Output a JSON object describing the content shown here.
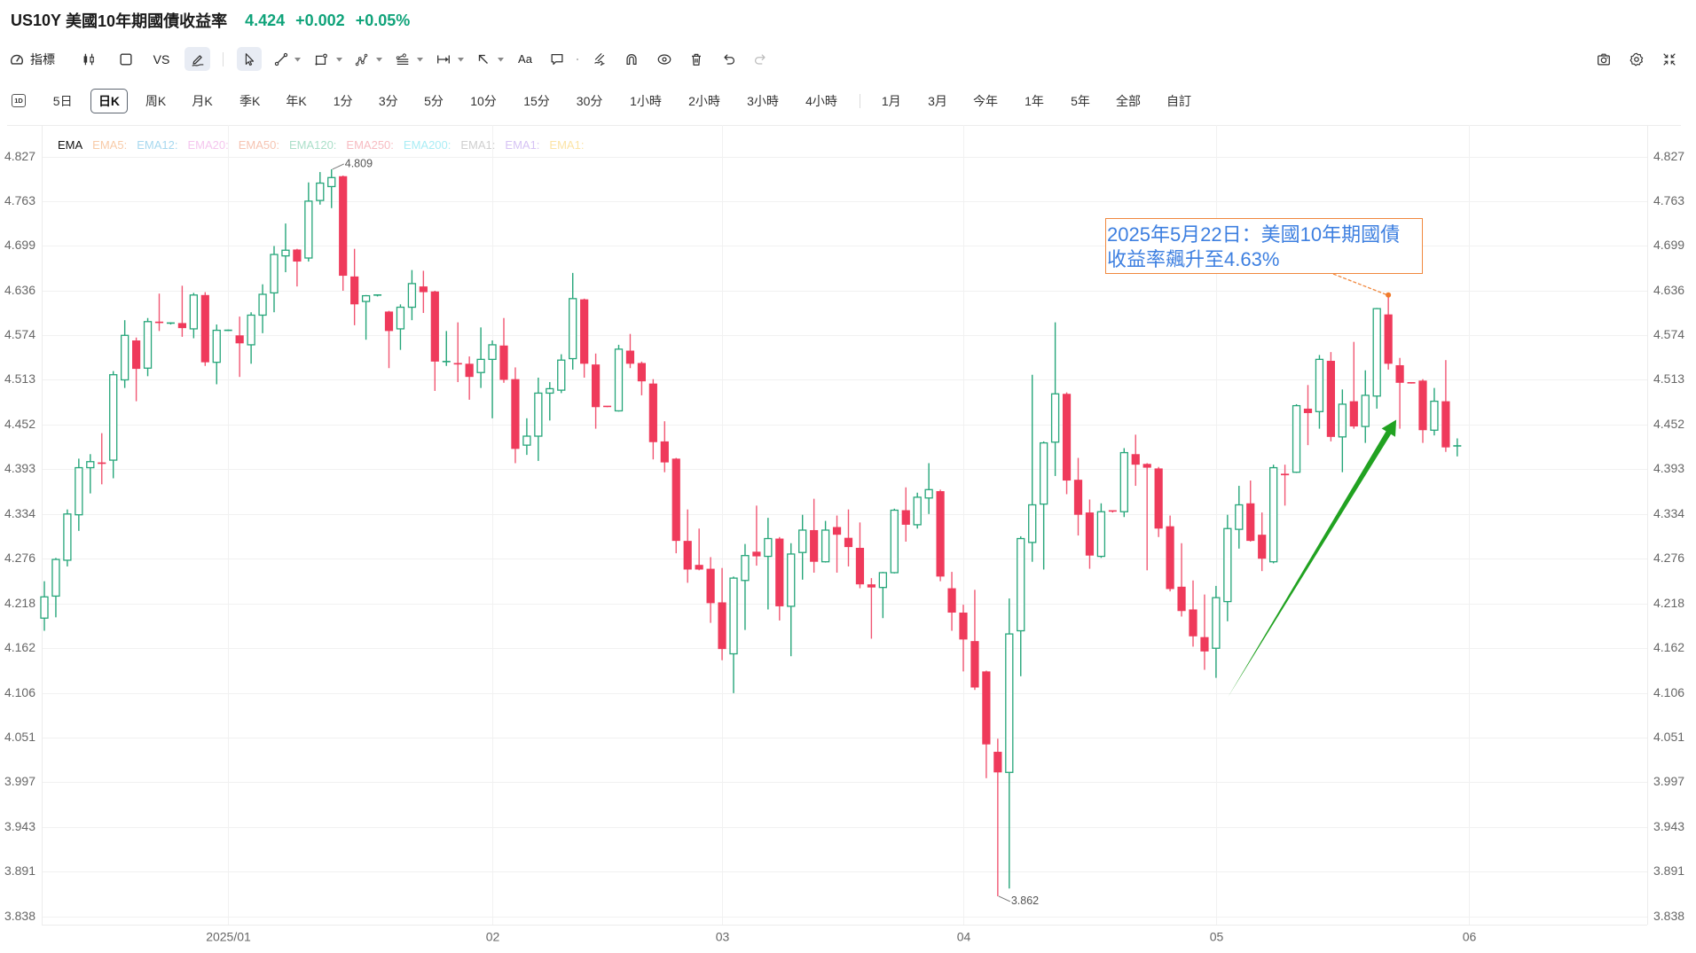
{
  "header": {
    "symbol": "US10Y",
    "name": "美國10年期國債收益率",
    "price": "4.424",
    "change": "+0.002",
    "change_pct": "+0.05%"
  },
  "toolbar": {
    "indicators": {
      "label": "指標",
      "icon": "gauge-icon"
    },
    "chart_type": {
      "icon": "candlestick-icon"
    },
    "layout": {
      "icon": "square-icon"
    },
    "compare": {
      "label": "VS"
    },
    "drawing_toggle": {
      "icon": "pen-icon",
      "active": true
    },
    "cursor": {
      "icon": "cursor-arrow-icon",
      "active": true
    },
    "tools": [
      {
        "icon": "trend-line-icon",
        "has_dropdown": true
      },
      {
        "icon": "rectangle-shape-icon",
        "has_dropdown": true
      },
      {
        "icon": "pattern-icon",
        "has_dropdown": true
      },
      {
        "icon": "fibonacci-icon",
        "has_dropdown": true
      },
      {
        "icon": "measure-range-icon",
        "has_dropdown": true
      },
      {
        "icon": "arrow-tool-icon",
        "has_dropdown": true
      }
    ],
    "text_tool": {
      "label": "Aa"
    },
    "actions": [
      "comment-icon",
      "brush-icon",
      "magnet-icon",
      "eye-icon",
      "trash-icon",
      "undo-icon",
      "redo-icon"
    ],
    "right": [
      "camera-icon",
      "settings-icon",
      "exit-fullscreen-icon"
    ]
  },
  "periods": {
    "badge": "1D",
    "items": [
      {
        "label": "5日"
      },
      {
        "label": "日K",
        "active": true
      },
      {
        "label": "周K"
      },
      {
        "label": "月K"
      },
      {
        "label": "季K"
      },
      {
        "label": "年K"
      },
      {
        "label": "1分"
      },
      {
        "label": "3分"
      },
      {
        "label": "5分"
      },
      {
        "label": "10分"
      },
      {
        "label": "15分"
      },
      {
        "label": "30分"
      },
      {
        "label": "1小時"
      },
      {
        "label": "2小時"
      },
      {
        "label": "3小時"
      },
      {
        "label": "4小時"
      }
    ],
    "ranges": [
      {
        "label": "1月"
      },
      {
        "label": "3月"
      },
      {
        "label": "今年"
      },
      {
        "label": "1年"
      },
      {
        "label": "5年"
      },
      {
        "label": "全部"
      },
      {
        "label": "自訂"
      }
    ]
  },
  "legend": {
    "title": "EMA",
    "items": [
      {
        "label": "EMA5:",
        "color": "#f8cba8"
      },
      {
        "label": "EMA12:",
        "color": "#a7d8ef"
      },
      {
        "label": "EMA20:",
        "color": "#f5c6ee"
      },
      {
        "label": "EMA50:",
        "color": "#f6c4b2"
      },
      {
        "label": "EMA120:",
        "color": "#abdfc9"
      },
      {
        "label": "EMA250:",
        "color": "#f7bcc2"
      },
      {
        "label": "EMA200:",
        "color": "#aaedf5"
      },
      {
        "label": "EMA1:",
        "color": "#cfcfcf"
      },
      {
        "label": "EMA1:",
        "color": "#d6c3f4"
      },
      {
        "label": "EMA1:",
        "color": "#fce4a6"
      }
    ]
  },
  "annotation": {
    "lines": [
      "2025年5月22日：美國10年期國債",
      "收益率飆升至4.63%"
    ],
    "border_color": "#f0883e",
    "text_color": "#3d7fe0"
  },
  "colors": {
    "up": "#26a67a",
    "down": "#ef3a5b",
    "quote": "#10a37a",
    "arrow": "#21a221",
    "grid": "#f1f1f1",
    "axis_text": "#666666"
  },
  "chart_data": {
    "type": "candlestick",
    "title": "US10Y 美國10年期國債收益率",
    "interval": "日K",
    "y_scale": "log",
    "ylim": [
      3.838,
      4.827
    ],
    "y_ticks": [
      4.827,
      4.763,
      4.699,
      4.636,
      4.574,
      4.513,
      4.452,
      4.393,
      4.334,
      4.276,
      4.218,
      4.162,
      4.106,
      4.051,
      3.997,
      3.943,
      3.891,
      3.838
    ],
    "x_ticks": [
      {
        "label": "2025/01",
        "index": 16
      },
      {
        "label": "02",
        "index": 39
      },
      {
        "label": "03",
        "index": 59
      },
      {
        "label": "04",
        "index": 80
      },
      {
        "label": "05",
        "index": 102
      },
      {
        "label": "06",
        "index": 124
      }
    ],
    "ohlc_fields": [
      "open",
      "high",
      "low",
      "close"
    ],
    "candles": [
      [
        4.2,
        4.247,
        4.184,
        4.227
      ],
      [
        4.228,
        4.277,
        4.201,
        4.275
      ],
      [
        4.274,
        4.34,
        4.266,
        4.334
      ],
      [
        4.333,
        4.407,
        4.312,
        4.395
      ],
      [
        4.395,
        4.413,
        4.361,
        4.403
      ],
      [
        4.402,
        4.441,
        4.373,
        4.4
      ],
      [
        4.405,
        4.525,
        4.381,
        4.52
      ],
      [
        4.513,
        4.595,
        4.502,
        4.574
      ],
      [
        4.567,
        4.571,
        4.484,
        4.528
      ],
      [
        4.529,
        4.598,
        4.518,
        4.593
      ],
      [
        4.593,
        4.632,
        4.58,
        4.591
      ],
      [
        4.59,
        4.592,
        4.589,
        4.591
      ],
      [
        4.591,
        4.643,
        4.572,
        4.584
      ],
      [
        4.583,
        4.633,
        4.57,
        4.63
      ],
      [
        4.63,
        4.634,
        4.532,
        4.537
      ],
      [
        4.537,
        4.589,
        4.507,
        4.581
      ],
      [
        4.58,
        4.582,
        4.58,
        4.581
      ],
      [
        4.574,
        4.6,
        4.517,
        4.563
      ],
      [
        4.561,
        4.606,
        4.535,
        4.602
      ],
      [
        4.602,
        4.645,
        4.577,
        4.631
      ],
      [
        4.633,
        4.699,
        4.606,
        4.687
      ],
      [
        4.685,
        4.731,
        4.662,
        4.693
      ],
      [
        4.694,
        4.695,
        4.642,
        4.677
      ],
      [
        4.682,
        4.79,
        4.677,
        4.763
      ],
      [
        4.764,
        4.805,
        4.758,
        4.789
      ],
      [
        4.784,
        4.809,
        4.753,
        4.797
      ],
      [
        4.799,
        4.8,
        4.636,
        4.657
      ],
      [
        4.656,
        4.695,
        4.588,
        4.617
      ],
      [
        4.621,
        4.63,
        4.568,
        4.629
      ],
      [
        4.629,
        4.63,
        4.628,
        4.63
      ],
      [
        4.607,
        4.608,
        4.529,
        4.58
      ],
      [
        4.583,
        4.617,
        4.554,
        4.613
      ],
      [
        4.613,
        4.665,
        4.595,
        4.646
      ],
      [
        4.642,
        4.664,
        4.605,
        4.634
      ],
      [
        4.635,
        4.636,
        4.498,
        4.538
      ],
      [
        4.537,
        4.58,
        4.532,
        4.538
      ],
      [
        4.536,
        4.592,
        4.51,
        4.534
      ],
      [
        4.535,
        4.545,
        4.486,
        4.517
      ],
      [
        4.523,
        4.585,
        4.502,
        4.541
      ],
      [
        4.541,
        4.567,
        4.461,
        4.561
      ],
      [
        4.56,
        4.598,
        4.509,
        4.513
      ],
      [
        4.514,
        4.53,
        4.401,
        4.42
      ],
      [
        4.425,
        4.461,
        4.412,
        4.437
      ],
      [
        4.437,
        4.516,
        4.404,
        4.495
      ],
      [
        4.495,
        4.51,
        4.458,
        4.501
      ],
      [
        4.499,
        4.548,
        4.495,
        4.54
      ],
      [
        4.542,
        4.661,
        4.527,
        4.625
      ],
      [
        4.624,
        4.625,
        4.516,
        4.535
      ],
      [
        4.534,
        4.549,
        4.447,
        4.476
      ],
      [
        4.477,
        4.477,
        4.476,
        4.476
      ],
      [
        4.471,
        4.561,
        4.47,
        4.555
      ],
      [
        4.553,
        4.576,
        4.529,
        4.535
      ],
      [
        4.536,
        4.538,
        4.492,
        4.511
      ],
      [
        4.508,
        4.514,
        4.406,
        4.429
      ],
      [
        4.43,
        4.457,
        4.389,
        4.402
      ],
      [
        4.407,
        4.408,
        4.283,
        4.299
      ],
      [
        4.299,
        4.34,
        4.245,
        4.262
      ],
      [
        4.268,
        4.315,
        4.261,
        4.262
      ],
      [
        4.263,
        4.278,
        4.194,
        4.219
      ],
      [
        4.22,
        4.264,
        4.147,
        4.161
      ],
      [
        4.155,
        4.253,
        4.106,
        4.251
      ],
      [
        4.248,
        4.295,
        4.185,
        4.28
      ],
      [
        4.285,
        4.345,
        4.267,
        4.279
      ],
      [
        4.279,
        4.329,
        4.211,
        4.302
      ],
      [
        4.302,
        4.304,
        4.197,
        4.215
      ],
      [
        4.215,
        4.296,
        4.152,
        4.282
      ],
      [
        4.284,
        4.333,
        4.249,
        4.313
      ],
      [
        4.313,
        4.354,
        4.258,
        4.272
      ],
      [
        4.272,
        4.325,
        4.271,
        4.313
      ],
      [
        4.317,
        4.332,
        4.258,
        4.307
      ],
      [
        4.303,
        4.34,
        4.266,
        4.291
      ],
      [
        4.29,
        4.323,
        4.238,
        4.243
      ],
      [
        4.243,
        4.251,
        4.174,
        4.239
      ],
      [
        4.239,
        4.259,
        4.2,
        4.258
      ],
      [
        4.258,
        4.341,
        4.257,
        4.339
      ],
      [
        4.339,
        4.369,
        4.298,
        4.32
      ],
      [
        4.32,
        4.362,
        4.315,
        4.356
      ],
      [
        4.355,
        4.401,
        4.334,
        4.366
      ],
      [
        4.364,
        4.366,
        4.247,
        4.253
      ],
      [
        4.238,
        4.259,
        4.184,
        4.207
      ],
      [
        4.207,
        4.217,
        4.133,
        4.173
      ],
      [
        4.171,
        4.236,
        4.11,
        4.113
      ],
      [
        4.133,
        4.134,
        4.002,
        4.043
      ],
      [
        4.034,
        4.05,
        3.862,
        4.009
      ],
      [
        4.009,
        4.225,
        3.871,
        4.18
      ],
      [
        4.184,
        4.305,
        4.127,
        4.302
      ],
      [
        4.297,
        4.52,
        4.272,
        4.346
      ],
      [
        4.347,
        4.43,
        4.262,
        4.428
      ],
      [
        4.429,
        4.592,
        4.384,
        4.494
      ],
      [
        4.494,
        4.496,
        4.36,
        4.378
      ],
      [
        4.379,
        4.408,
        4.306,
        4.333
      ],
      [
        4.336,
        4.353,
        4.263,
        4.28
      ],
      [
        4.279,
        4.348,
        4.277,
        4.337
      ],
      [
        4.338,
        4.338,
        4.336,
        4.337
      ],
      [
        4.337,
        4.421,
        4.33,
        4.415
      ],
      [
        4.413,
        4.439,
        4.371,
        4.399
      ],
      [
        4.4,
        4.401,
        4.261,
        4.395
      ],
      [
        4.394,
        4.396,
        4.304,
        4.315
      ],
      [
        4.318,
        4.332,
        4.234,
        4.237
      ],
      [
        4.24,
        4.296,
        4.202,
        4.209
      ],
      [
        4.211,
        4.248,
        4.164,
        4.177
      ],
      [
        4.176,
        4.23,
        4.135,
        4.158
      ],
      [
        4.162,
        4.241,
        4.125,
        4.226
      ],
      [
        4.221,
        4.333,
        4.196,
        4.315
      ],
      [
        4.314,
        4.371,
        4.289,
        4.346
      ],
      [
        4.348,
        4.378,
        4.298,
        4.299
      ],
      [
        4.307,
        4.336,
        4.26,
        4.276
      ],
      [
        4.272,
        4.399,
        4.27,
        4.395
      ],
      [
        4.387,
        4.399,
        4.345,
        4.385
      ],
      [
        4.389,
        4.48,
        4.388,
        4.478
      ],
      [
        4.474,
        4.506,
        4.425,
        4.468
      ],
      [
        4.47,
        4.547,
        4.447,
        4.541
      ],
      [
        4.539,
        4.551,
        4.43,
        4.436
      ],
      [
        4.436,
        4.5,
        4.389,
        4.48
      ],
      [
        4.484,
        4.565,
        4.447,
        4.45
      ],
      [
        4.45,
        4.526,
        4.428,
        4.492
      ],
      [
        4.491,
        4.612,
        4.474,
        4.611
      ],
      [
        4.603,
        4.629,
        4.527,
        4.535
      ],
      [
        4.533,
        4.543,
        4.447,
        4.509
      ],
      [
        4.509,
        4.51,
        4.508,
        4.508
      ],
      [
        4.512,
        4.514,
        4.428,
        4.445
      ],
      [
        4.445,
        4.502,
        4.438,
        4.484
      ],
      [
        4.484,
        4.54,
        4.416,
        4.422
      ],
      [
        4.423,
        4.434,
        4.41,
        4.424
      ]
    ],
    "high_marker": {
      "index": 25,
      "value": 4.809,
      "label": "4.809"
    },
    "low_marker": {
      "index": 83,
      "value": 3.862,
      "label": "3.862"
    },
    "annotation_point": {
      "index": 117,
      "value": 4.63
    },
    "trend_arrow": {
      "from_index": 103,
      "from_value": 4.101,
      "to_index": 117,
      "to_value": 4.459
    },
    "grid": true,
    "legend_position": "top-left"
  }
}
